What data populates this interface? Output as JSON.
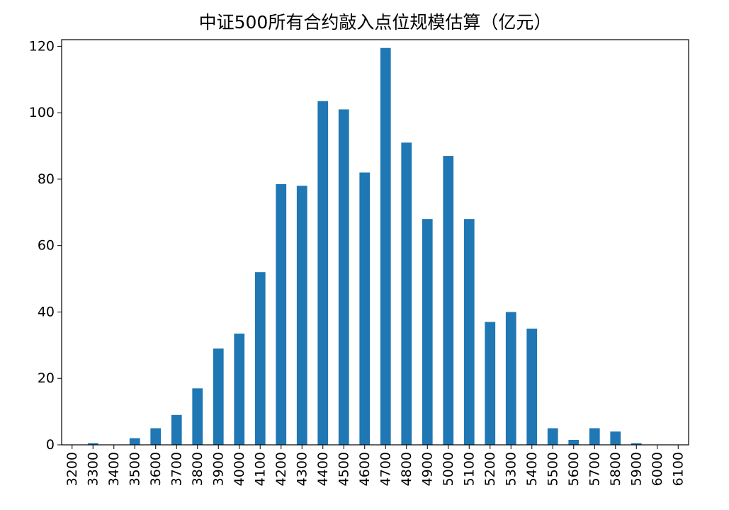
{
  "chart_data": {
    "type": "bar",
    "title": "中证500所有合约敲入点位规模估算（亿元）",
    "xlabel": "",
    "ylabel": "",
    "categories": [
      "3200",
      "3300",
      "3400",
      "3500",
      "3600",
      "3700",
      "3800",
      "3900",
      "4000",
      "4100",
      "4200",
      "4300",
      "4400",
      "4500",
      "4600",
      "4700",
      "4800",
      "4900",
      "5000",
      "5100",
      "5200",
      "5300",
      "5400",
      "5500",
      "5600",
      "5700",
      "5800",
      "5900",
      "6000",
      "6100"
    ],
    "values": [
      0,
      0.5,
      0,
      2,
      5,
      9,
      17,
      29,
      33.5,
      52,
      78.5,
      78,
      103.5,
      101,
      82,
      119.5,
      91,
      68,
      87,
      68,
      37,
      40,
      35,
      5,
      1.5,
      5,
      4,
      0.5,
      0,
      0
    ],
    "ylim": [
      0,
      122
    ],
    "yticks": [
      0,
      20,
      40,
      60,
      80,
      100,
      120
    ],
    "grid": false,
    "legend": "none",
    "bar_color": "#1f77b4"
  }
}
